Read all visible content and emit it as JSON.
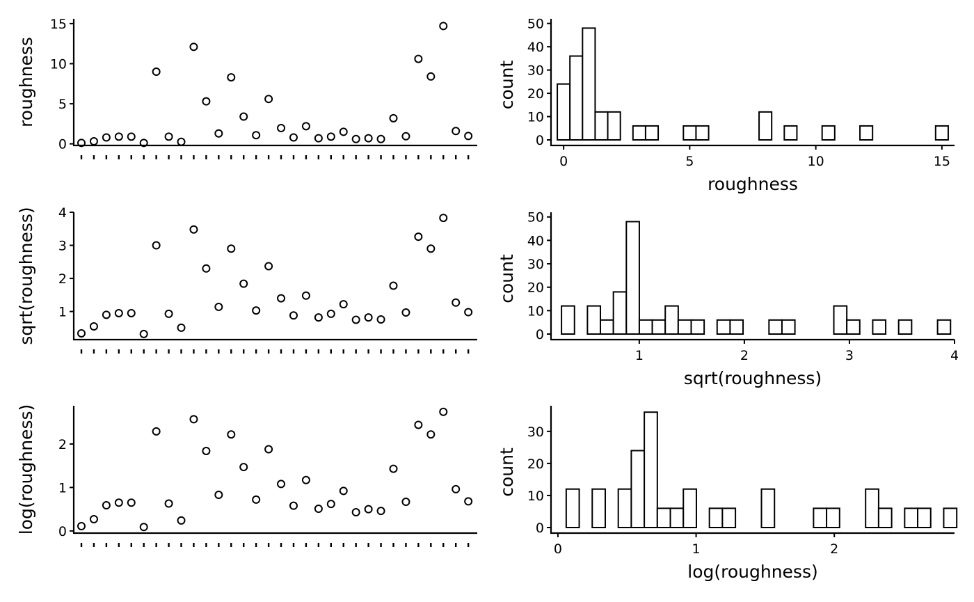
{
  "chart_data": [
    {
      "id": "scatter-roughness",
      "type": "scatter",
      "ylabel": "roughness",
      "xlabel": "",
      "ylim": [
        -0.2,
        15.6
      ],
      "yticks": [
        0,
        5,
        10,
        15
      ],
      "ytick_labels": [
        "0",
        "5",
        "10",
        "15"
      ],
      "x_count": 32,
      "y": [
        0.12,
        0.32,
        0.8,
        0.9,
        0.9,
        0.12,
        9.0,
        0.9,
        0.26,
        12.1,
        5.3,
        1.3,
        8.3,
        3.4,
        1.08,
        5.6,
        1.97,
        0.8,
        2.2,
        0.7,
        0.9,
        1.5,
        0.6,
        0.7,
        0.6,
        3.2,
        0.95,
        10.6,
        8.4,
        14.7,
        1.6,
        0.98
      ],
      "marker": "open-circle",
      "grid": false
    },
    {
      "id": "hist-roughness",
      "type": "bar",
      "subtype": "histogram",
      "xlabel": "roughness",
      "ylabel": "count",
      "xlim": [
        -0.5,
        15.5
      ],
      "ylim": [
        0,
        52
      ],
      "xticks": [
        0,
        5,
        10,
        15
      ],
      "xtick_labels": [
        "0",
        "5",
        "10",
        "15"
      ],
      "yticks": [
        0,
        10,
        20,
        30,
        40,
        50
      ],
      "ytick_labels": [
        "0",
        "10",
        "20",
        "30",
        "40",
        "50"
      ],
      "bin_start": -0.25,
      "bin_width": 0.5,
      "counts": [
        24,
        36,
        48,
        12,
        12,
        0,
        6,
        6,
        0,
        0,
        6,
        6,
        0,
        0,
        0,
        0,
        12,
        0,
        6,
        0,
        0,
        6,
        0,
        0,
        6,
        0,
        0,
        0,
        0,
        0,
        6
      ],
      "grid": false
    },
    {
      "id": "scatter-sqrt",
      "type": "scatter",
      "ylabel": "sqrt(roughness)",
      "xlabel": "",
      "ylim": [
        0.15,
        4.0
      ],
      "yticks": [
        1,
        2,
        3,
        4
      ],
      "ytick_labels": [
        "1",
        "2",
        "3",
        "4"
      ],
      "x_count": 32,
      "y": [
        0.34,
        0.55,
        0.9,
        0.95,
        0.95,
        0.32,
        3.0,
        0.93,
        0.51,
        3.48,
        2.3,
        1.14,
        2.9,
        1.84,
        1.03,
        2.37,
        1.4,
        0.88,
        1.48,
        0.82,
        0.93,
        1.22,
        0.75,
        0.82,
        0.76,
        1.78,
        0.97,
        3.26,
        2.9,
        3.83,
        1.27,
        0.98
      ],
      "marker": "open-circle",
      "grid": false
    },
    {
      "id": "hist-sqrt",
      "type": "bar",
      "subtype": "histogram",
      "xlabel": "sqrt(roughness)",
      "ylabel": "count",
      "xlim": [
        0.16,
        4.0
      ],
      "ylim": [
        0,
        52
      ],
      "xticks": [
        1,
        2,
        3,
        4
      ],
      "xtick_labels": [
        "1",
        "2",
        "3",
        "4"
      ],
      "yticks": [
        0,
        10,
        20,
        30,
        40,
        50
      ],
      "ytick_labels": [
        "0",
        "10",
        "20",
        "30",
        "40",
        "50"
      ],
      "bin_start": 0.26,
      "bin_width": 0.1234,
      "counts": [
        12,
        0,
        12,
        6,
        18,
        48,
        6,
        6,
        12,
        6,
        6,
        0,
        6,
        6,
        0,
        0,
        6,
        6,
        0,
        0,
        0,
        12,
        6,
        0,
        6,
        0,
        6,
        0,
        0,
        6
      ],
      "grid": false
    },
    {
      "id": "scatter-log",
      "type": "scatter",
      "ylabel": "log(roughness)",
      "xlabel": "",
      "ylim": [
        -0.05,
        2.88
      ],
      "yticks": [
        0,
        1,
        2
      ],
      "ytick_labels": [
        "0",
        "1",
        "2"
      ],
      "x_count": 32,
      "y": [
        0.11,
        0.27,
        0.59,
        0.65,
        0.65,
        0.09,
        2.29,
        0.63,
        0.24,
        2.57,
        1.84,
        0.83,
        2.22,
        1.47,
        0.72,
        1.88,
        1.08,
        0.58,
        1.17,
        0.51,
        0.62,
        0.92,
        0.43,
        0.5,
        0.46,
        1.43,
        0.67,
        2.44,
        2.22,
        2.74,
        0.96,
        0.68
      ],
      "marker": "open-circle",
      "grid": false
    },
    {
      "id": "hist-log",
      "type": "bar",
      "subtype": "histogram",
      "xlabel": "log(roughness)",
      "ylabel": "count",
      "xlim": [
        -0.05,
        2.87
      ],
      "ylim": [
        0,
        38
      ],
      "xticks": [
        0,
        1,
        2
      ],
      "xtick_labels": [
        "0",
        "1",
        "2"
      ],
      "yticks": [
        0,
        10,
        20,
        30
      ],
      "ytick_labels": [
        "0",
        "10",
        "20",
        "30"
      ],
      "bin_start": 0.06,
      "bin_width": 0.0942,
      "counts": [
        12,
        0,
        12,
        0,
        12,
        24,
        36,
        6,
        6,
        12,
        0,
        6,
        6,
        0,
        0,
        12,
        0,
        0,
        0,
        6,
        6,
        0,
        0,
        12,
        6,
        0,
        6,
        6,
        0,
        6
      ],
      "grid": false
    }
  ]
}
